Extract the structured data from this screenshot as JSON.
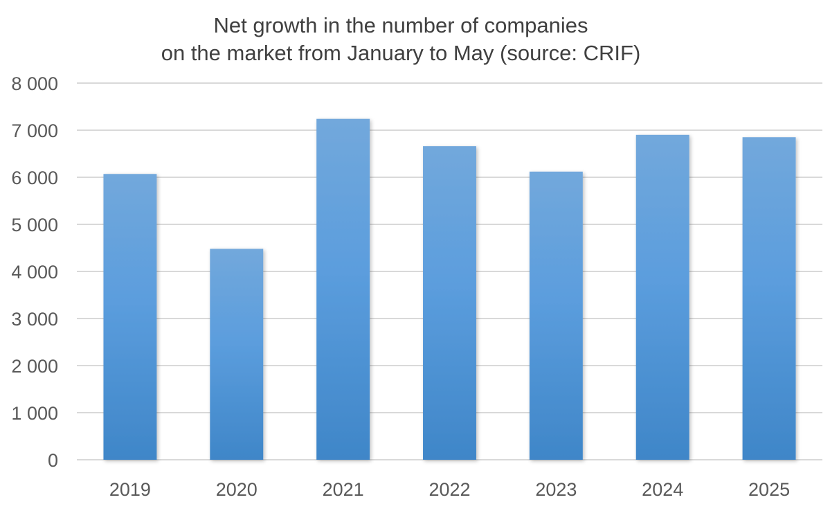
{
  "chart_data": {
    "type": "bar",
    "title": [
      "Net growth in the number of companies",
      "on the market from January to May (source: CRIF)"
    ],
    "categories": [
      "2019",
      "2020",
      "2021",
      "2022",
      "2023",
      "2024",
      "2025"
    ],
    "values": [
      6070,
      4480,
      7240,
      6660,
      6120,
      6900,
      6850
    ],
    "yticks": [
      "0",
      "1 000",
      "2 000",
      "3 000",
      "4 000",
      "5 000",
      "6 000",
      "7 000",
      "8 000"
    ],
    "ylim": [
      0,
      8000
    ],
    "xlabel": "",
    "ylabel": "",
    "grid": true,
    "legend": "none",
    "bar_color_top": "#72a8dc",
    "bar_color_bottom": "#3f86c8",
    "gridline_color": "#d9d9d9",
    "text_color": "#595959"
  }
}
